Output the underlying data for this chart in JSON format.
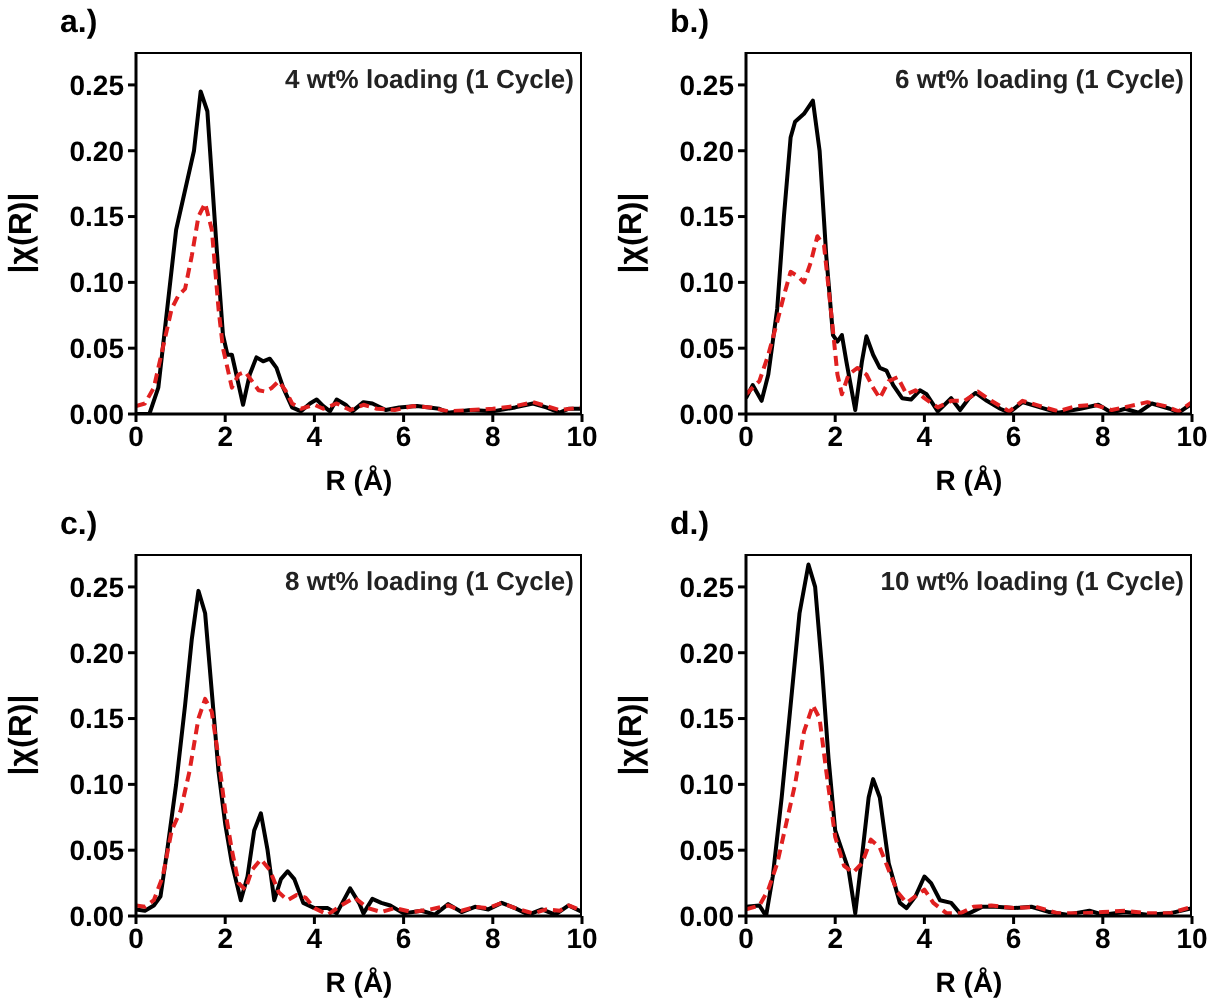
{
  "chart_data": [
    {
      "type": "line",
      "title": "a.)",
      "annotations": [
        "4 wt% loading (1 Cycle)"
      ],
      "xlabel": "R (Å)",
      "ylabel": "|χ(R)|",
      "xlim": [
        0,
        10
      ],
      "ylim": [
        0,
        0.275
      ],
      "xticks": [
        0,
        2,
        4,
        6,
        8,
        10
      ],
      "yticks": [
        {
          "value": 0,
          "label": "0.00"
        },
        {
          "value": 0.05,
          "label": "0.05"
        },
        {
          "value": 0.1,
          "label": "0.10"
        },
        {
          "value": 0.15,
          "label": "0.15"
        },
        {
          "value": 0.2,
          "label": "0.20"
        },
        {
          "value": 0.25,
          "label": "0.25"
        }
      ],
      "series": [
        {
          "color": "#000000",
          "line_style": "solid",
          "x": [
            0,
            0.3,
            0.5,
            0.7,
            0.9,
            1.1,
            1.3,
            1.45,
            1.6,
            1.8,
            1.95,
            2.05,
            2.15,
            2.25,
            2.4,
            2.55,
            2.7,
            2.85,
            3.0,
            3.15,
            3.3,
            3.5,
            3.7,
            3.9,
            4.05,
            4.2,
            4.35,
            4.5,
            4.7,
            4.85,
            5.1,
            5.3,
            5.6,
            5.9,
            6.3,
            6.8,
            7.0,
            7.5,
            8.0,
            8.5,
            8.9,
            9.2,
            9.5,
            9.7,
            10
          ],
          "values": [
            0.0,
            0.0,
            0.02,
            0.08,
            0.14,
            0.17,
            0.2,
            0.245,
            0.23,
            0.13,
            0.06,
            0.045,
            0.045,
            0.03,
            0.007,
            0.03,
            0.043,
            0.04,
            0.042,
            0.035,
            0.02,
            0.005,
            0.002,
            0.008,
            0.011,
            0.006,
            0.002,
            0.011,
            0.007,
            0.002,
            0.009,
            0.008,
            0.003,
            0.005,
            0.006,
            0.004,
            0.001,
            0.003,
            0.002,
            0.005,
            0.008,
            0.005,
            0.001,
            0.004,
            0.004
          ]
        },
        {
          "color": "#e02020",
          "line_style": "dashed",
          "x": [
            0,
            0.2,
            0.4,
            0.6,
            0.8,
            0.95,
            1.1,
            1.25,
            1.4,
            1.55,
            1.7,
            1.85,
            1.95,
            2.05,
            2.15,
            2.3,
            2.45,
            2.6,
            2.75,
            2.9,
            3.05,
            3.2,
            3.35,
            3.5,
            3.7,
            4.0,
            4.2,
            4.5,
            4.8,
            5.1,
            5.4,
            5.8,
            6.2,
            6.6,
            7.0,
            7.5,
            8.0,
            8.5,
            8.9,
            9.2,
            9.5,
            10
          ],
          "values": [
            0.006,
            0.008,
            0.02,
            0.05,
            0.08,
            0.09,
            0.095,
            0.12,
            0.15,
            0.16,
            0.14,
            0.08,
            0.05,
            0.035,
            0.02,
            0.03,
            0.032,
            0.025,
            0.018,
            0.017,
            0.02,
            0.025,
            0.018,
            0.008,
            0.004,
            0.007,
            0.004,
            0.008,
            0.003,
            0.007,
            0.004,
            0.003,
            0.006,
            0.005,
            0.002,
            0.003,
            0.004,
            0.006,
            0.009,
            0.006,
            0.003,
            0.005
          ]
        }
      ]
    },
    {
      "type": "line",
      "title": "b.)",
      "annotations": [
        "6 wt% loading (1 Cycle)"
      ],
      "xlabel": "R (Å)",
      "ylabel": "|χ(R)|",
      "xlim": [
        0,
        10
      ],
      "ylim": [
        0,
        0.275
      ],
      "xticks": [
        0,
        2,
        4,
        6,
        8,
        10
      ],
      "yticks": [
        {
          "value": 0,
          "label": "0.00"
        },
        {
          "value": 0.05,
          "label": "0.05"
        },
        {
          "value": 0.1,
          "label": "0.10"
        },
        {
          "value": 0.15,
          "label": "0.15"
        },
        {
          "value": 0.2,
          "label": "0.20"
        },
        {
          "value": 0.25,
          "label": "0.25"
        }
      ],
      "series": [
        {
          "color": "#000000",
          "line_style": "solid",
          "x": [
            0,
            0.15,
            0.35,
            0.5,
            0.7,
            0.85,
            1.0,
            1.1,
            1.3,
            1.5,
            1.65,
            1.8,
            1.95,
            2.05,
            2.15,
            2.25,
            2.45,
            2.6,
            2.7,
            2.85,
            3.0,
            3.15,
            3.3,
            3.5,
            3.7,
            3.9,
            4.05,
            4.3,
            4.6,
            4.8,
            5.0,
            5.15,
            5.4,
            5.7,
            5.9,
            6.2,
            6.5,
            7.0,
            7.5,
            7.9,
            8.2,
            8.5,
            8.8,
            9.1,
            9.5,
            9.7,
            10
          ],
          "values": [
            0.012,
            0.022,
            0.01,
            0.03,
            0.08,
            0.15,
            0.21,
            0.222,
            0.228,
            0.238,
            0.2,
            0.12,
            0.06,
            0.055,
            0.06,
            0.04,
            0.003,
            0.04,
            0.059,
            0.045,
            0.035,
            0.033,
            0.022,
            0.012,
            0.011,
            0.018,
            0.015,
            0.002,
            0.012,
            0.003,
            0.012,
            0.016,
            0.01,
            0.004,
            0.001,
            0.009,
            0.006,
            0.001,
            0.004,
            0.007,
            0.001,
            0.004,
            0.001,
            0.008,
            0.004,
            0.001,
            0.008
          ]
        },
        {
          "color": "#e02020",
          "line_style": "dashed",
          "x": [
            0,
            0.3,
            0.5,
            0.7,
            0.85,
            1.0,
            1.15,
            1.3,
            1.45,
            1.6,
            1.75,
            1.9,
            2.05,
            2.15,
            2.3,
            2.5,
            2.7,
            2.85,
            3.0,
            3.2,
            3.4,
            3.6,
            3.8,
            4.0,
            4.3,
            4.6,
            4.9,
            5.2,
            5.5,
            5.9,
            6.2,
            6.6,
            7.0,
            7.4,
            7.8,
            8.2,
            8.6,
            9.0,
            9.4,
            9.7,
            10
          ],
          "values": [
            0.015,
            0.025,
            0.045,
            0.07,
            0.09,
            0.108,
            0.105,
            0.1,
            0.115,
            0.135,
            0.128,
            0.08,
            0.03,
            0.015,
            0.03,
            0.035,
            0.03,
            0.02,
            0.012,
            0.025,
            0.028,
            0.015,
            0.018,
            0.012,
            0.005,
            0.01,
            0.01,
            0.017,
            0.01,
            0.002,
            0.01,
            0.006,
            0.002,
            0.006,
            0.007,
            0.003,
            0.006,
            0.009,
            0.006,
            0.002,
            0.009
          ]
        }
      ]
    },
    {
      "type": "line",
      "title": "c.)",
      "annotations": [
        "8 wt% loading (1 Cycle)"
      ],
      "xlabel": "R (Å)",
      "ylabel": "|χ(R)|",
      "xlim": [
        0,
        10
      ],
      "ylim": [
        0,
        0.275
      ],
      "xticks": [
        0,
        2,
        4,
        6,
        8,
        10
      ],
      "yticks": [
        {
          "value": 0,
          "label": "0.00"
        },
        {
          "value": 0.05,
          "label": "0.05"
        },
        {
          "value": 0.1,
          "label": "0.10"
        },
        {
          "value": 0.15,
          "label": "0.15"
        },
        {
          "value": 0.2,
          "label": "0.20"
        },
        {
          "value": 0.25,
          "label": "0.25"
        }
      ],
      "series": [
        {
          "color": "#000000",
          "line_style": "solid",
          "x": [
            0,
            0.2,
            0.4,
            0.55,
            0.7,
            0.9,
            1.1,
            1.25,
            1.4,
            1.55,
            1.7,
            1.85,
            2.0,
            2.15,
            2.35,
            2.5,
            2.65,
            2.8,
            2.95,
            3.1,
            3.25,
            3.4,
            3.55,
            3.75,
            4.0,
            4.3,
            4.5,
            4.8,
            5.0,
            5.1,
            5.3,
            5.5,
            5.7,
            6.0,
            6.4,
            6.7,
            7.0,
            7.3,
            7.6,
            7.9,
            8.2,
            8.5,
            8.8,
            9.1,
            9.4,
            9.7,
            10
          ],
          "values": [
            0.005,
            0.004,
            0.008,
            0.015,
            0.05,
            0.1,
            0.16,
            0.21,
            0.247,
            0.23,
            0.17,
            0.11,
            0.07,
            0.04,
            0.012,
            0.03,
            0.065,
            0.078,
            0.05,
            0.012,
            0.028,
            0.034,
            0.028,
            0.01,
            0.006,
            0.006,
            0.002,
            0.021,
            0.01,
            0.002,
            0.013,
            0.01,
            0.008,
            0.002,
            0.004,
            0.001,
            0.009,
            0.003,
            0.007,
            0.005,
            0.01,
            0.006,
            0.001,
            0.005,
            0.001,
            0.008,
            0.003
          ]
        },
        {
          "color": "#e02020",
          "line_style": "dashed",
          "x": [
            0,
            0.2,
            0.4,
            0.6,
            0.8,
            1.0,
            1.2,
            1.4,
            1.55,
            1.7,
            1.85,
            2.0,
            2.15,
            2.3,
            2.45,
            2.6,
            2.8,
            3.0,
            3.2,
            3.4,
            3.6,
            3.8,
            4.0,
            4.3,
            4.6,
            4.9,
            5.2,
            5.5,
            5.8,
            6.2,
            6.6,
            7.0,
            7.3,
            7.6,
            7.9,
            8.2,
            8.5,
            8.9,
            9.2,
            9.5,
            9.7,
            10
          ],
          "values": [
            0.008,
            0.007,
            0.012,
            0.03,
            0.065,
            0.08,
            0.11,
            0.15,
            0.165,
            0.155,
            0.12,
            0.08,
            0.05,
            0.025,
            0.02,
            0.035,
            0.043,
            0.035,
            0.018,
            0.012,
            0.016,
            0.014,
            0.006,
            0.001,
            0.008,
            0.014,
            0.006,
            0.003,
            0.006,
            0.003,
            0.005,
            0.008,
            0.004,
            0.007,
            0.006,
            0.01,
            0.006,
            0.002,
            0.005,
            0.004,
            0.008,
            0.004
          ]
        }
      ]
    },
    {
      "type": "line",
      "title": "d.)",
      "annotations": [
        "10 wt% loading (1 Cycle)"
      ],
      "xlabel": "R (Å)",
      "ylabel": "|χ(R)|",
      "xlim": [
        0,
        10
      ],
      "ylim": [
        0,
        0.275
      ],
      "xticks": [
        0,
        2,
        4,
        6,
        8,
        10
      ],
      "yticks": [
        {
          "value": 0,
          "label": "0.00"
        },
        {
          "value": 0.05,
          "label": "0.05"
        },
        {
          "value": 0.1,
          "label": "0.10"
        },
        {
          "value": 0.15,
          "label": "0.15"
        },
        {
          "value": 0.2,
          "label": "0.20"
        },
        {
          "value": 0.25,
          "label": "0.25"
        }
      ],
      "series": [
        {
          "color": "#000000",
          "line_style": "solid",
          "x": [
            0,
            0.3,
            0.45,
            0.6,
            0.8,
            1.0,
            1.2,
            1.4,
            1.55,
            1.7,
            1.85,
            2.0,
            2.15,
            2.3,
            2.45,
            2.6,
            2.75,
            2.85,
            3.0,
            3.2,
            3.45,
            3.6,
            3.8,
            4.0,
            4.15,
            4.35,
            4.6,
            4.8,
            5.0,
            5.3,
            5.6,
            6.0,
            6.4,
            6.8,
            7.2,
            7.7,
            8.0,
            8.5,
            9.0,
            9.5,
            10
          ],
          "values": [
            0.007,
            0.008,
            0.0,
            0.03,
            0.09,
            0.16,
            0.23,
            0.267,
            0.25,
            0.19,
            0.12,
            0.065,
            0.05,
            0.035,
            0.002,
            0.045,
            0.09,
            0.104,
            0.09,
            0.04,
            0.01,
            0.006,
            0.015,
            0.03,
            0.025,
            0.012,
            0.01,
            0.002,
            0.002,
            0.007,
            0.007,
            0.006,
            0.007,
            0.003,
            0.001,
            0.004,
            0.001,
            0.003,
            0.001,
            0.002,
            0.006
          ]
        },
        {
          "color": "#e02020",
          "line_style": "dashed",
          "x": [
            0,
            0.3,
            0.5,
            0.7,
            0.9,
            1.1,
            1.3,
            1.5,
            1.65,
            1.8,
            2.0,
            2.2,
            2.4,
            2.6,
            2.8,
            3.0,
            3.2,
            3.4,
            3.6,
            3.8,
            4.0,
            4.2,
            4.5,
            4.8,
            5.1,
            5.5,
            6.0,
            6.5,
            7.0,
            7.5,
            8.0,
            8.5,
            9.0,
            9.5,
            10
          ],
          "values": [
            0.005,
            0.008,
            0.02,
            0.04,
            0.07,
            0.1,
            0.14,
            0.16,
            0.15,
            0.11,
            0.06,
            0.038,
            0.033,
            0.04,
            0.058,
            0.052,
            0.035,
            0.018,
            0.01,
            0.015,
            0.02,
            0.01,
            0.002,
            0.002,
            0.007,
            0.008,
            0.006,
            0.007,
            0.002,
            0.002,
            0.003,
            0.004,
            0.002,
            0.002,
            0.007
          ]
        }
      ]
    }
  ]
}
